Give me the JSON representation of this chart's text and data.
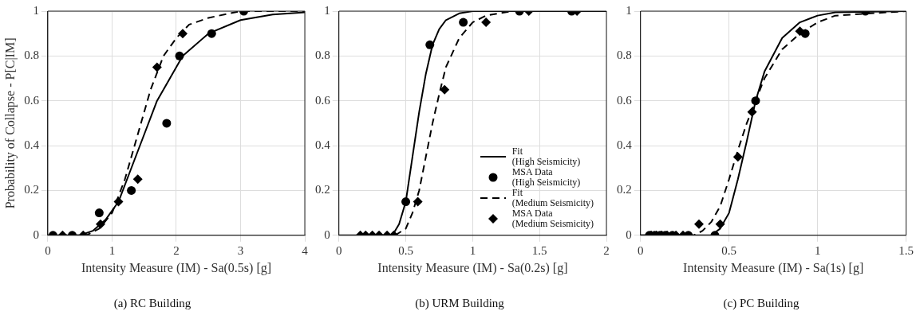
{
  "chart_data": [
    {
      "type": "line",
      "title": "(a) RC Building",
      "xlabel": "Intensity Measure (IM) - Sa(0.5s) [g]",
      "ylabel": "Probability of Collapse - P[C|IM]",
      "xlim": [
        0,
        4
      ],
      "xticks": [
        0,
        1,
        2,
        3,
        4
      ],
      "ylim": [
        0,
        1
      ],
      "yticks": [
        0,
        0.2,
        0.4,
        0.6,
        0.8,
        1
      ],
      "grid": true,
      "series": [
        {
          "type": "line",
          "color": "#000000",
          "line_style": "solid",
          "marker": "none",
          "x": [
            0,
            0.5,
            0.7,
            0.9,
            1.1,
            1.3,
            1.5,
            1.7,
            1.9,
            2.1,
            2.5,
            3,
            3.5,
            4
          ],
          "values": [
            0,
            0,
            0.02,
            0.07,
            0.15,
            0.3,
            0.45,
            0.6,
            0.7,
            0.8,
            0.9,
            0.96,
            0.985,
            0.995
          ]
        },
        {
          "type": "scatter",
          "color": "#000000",
          "marker": "circle",
          "x": [
            0.08,
            0.38,
            0.8,
            1.3,
            1.85,
            2.05,
            2.55,
            3.05
          ],
          "values": [
            0,
            0,
            0.1,
            0.2,
            0.5,
            0.8,
            0.9,
            1
          ]
        },
        {
          "type": "line",
          "color": "#000000",
          "line_style": "dashed",
          "marker": "none",
          "x": [
            0,
            0.6,
            0.8,
            1,
            1.2,
            1.4,
            1.6,
            1.8,
            2,
            2.2,
            2.5,
            3,
            4
          ],
          "values": [
            0,
            0,
            0.03,
            0.1,
            0.25,
            0.45,
            0.65,
            0.8,
            0.88,
            0.94,
            0.97,
            1,
            1
          ]
        },
        {
          "type": "scatter",
          "color": "#000000",
          "marker": "diamond",
          "x": [
            0.23,
            0.55,
            0.82,
            1.1,
            1.4,
            1.7,
            2.1
          ],
          "values": [
            0,
            0,
            0.05,
            0.15,
            0.25,
            0.75,
            0.9
          ]
        }
      ]
    },
    {
      "type": "line",
      "title": "(b) URM Building",
      "xlabel": "Intensity Measure (IM) - Sa(0.2s) [g]",
      "xlim": [
        0,
        2
      ],
      "xticks": [
        0,
        0.5,
        1,
        1.5,
        2
      ],
      "ylim": [
        0,
        1
      ],
      "yticks": [
        0,
        0.2,
        0.4,
        0.6,
        0.8,
        1
      ],
      "grid": true,
      "legend": "right",
      "series": [
        {
          "name": "Fit\n(High Seismicity)",
          "type": "line",
          "color": "#000000",
          "line_style": "solid",
          "marker": "none",
          "x": [
            0,
            0.4,
            0.45,
            0.5,
            0.55,
            0.6,
            0.65,
            0.7,
            0.75,
            0.8,
            0.9,
            1,
            2
          ],
          "values": [
            0,
            0,
            0.05,
            0.15,
            0.35,
            0.55,
            0.72,
            0.85,
            0.92,
            0.96,
            0.99,
            1,
            1
          ]
        },
        {
          "name": "MSA Data\n(High Seismicity)",
          "type": "scatter",
          "color": "#000000",
          "marker": "circle",
          "x": [
            0.5,
            0.68,
            0.93,
            1.35,
            1.74
          ],
          "values": [
            0.15,
            0.85,
            0.95,
            1,
            1
          ]
        },
        {
          "name": "Fit\n(Medium Seismicity)",
          "type": "line",
          "color": "#000000",
          "line_style": "dashed",
          "marker": "none",
          "x": [
            0.42,
            0.5,
            0.55,
            0.6,
            0.65,
            0.7,
            0.75,
            0.8,
            0.9,
            1,
            1.1,
            1.3,
            2
          ],
          "values": [
            0,
            0.03,
            0.1,
            0.2,
            0.35,
            0.5,
            0.63,
            0.75,
            0.88,
            0.95,
            0.98,
            1,
            1
          ]
        },
        {
          "name": "MSA Data\n(Medium Seismicity)",
          "type": "scatter",
          "color": "#000000",
          "marker": "diamond",
          "x": [
            0.16,
            0.2,
            0.25,
            0.3,
            0.36,
            0.41,
            0.59,
            0.79,
            1.1,
            1.42,
            1.78
          ],
          "values": [
            0,
            0,
            0,
            0,
            0,
            0,
            0.15,
            0.65,
            0.95,
            1,
            1
          ]
        }
      ]
    },
    {
      "type": "line",
      "title": "(c) PC Building",
      "xlabel": "Intensity Measure (IM) - Sa(1s) [g]",
      "xlim": [
        0,
        1.5
      ],
      "xticks": [
        0,
        0.5,
        1,
        1.5
      ],
      "ylim": [
        0,
        1
      ],
      "yticks": [
        0,
        0.2,
        0.4,
        0.6,
        0.8,
        1
      ],
      "grid": true,
      "series": [
        {
          "type": "line",
          "color": "#000000",
          "line_style": "solid",
          "marker": "none",
          "x": [
            0,
            0.4,
            0.45,
            0.5,
            0.55,
            0.6,
            0.65,
            0.7,
            0.8,
            0.9,
            1,
            1.1,
            1.5
          ],
          "values": [
            0,
            0,
            0.03,
            0.1,
            0.25,
            0.42,
            0.6,
            0.73,
            0.88,
            0.95,
            0.98,
            0.995,
            1
          ]
        },
        {
          "type": "scatter",
          "color": "#000000",
          "marker": "circle",
          "x": [
            0.05,
            0.08,
            0.11,
            0.14,
            0.18,
            0.27,
            0.42,
            0.65,
            0.93,
            1.27
          ],
          "values": [
            0,
            0,
            0,
            0,
            0,
            0,
            0,
            0.6,
            0.9,
            1
          ]
        },
        {
          "type": "line",
          "color": "#000000",
          "line_style": "dashed",
          "marker": "none",
          "x": [
            0,
            0.3,
            0.35,
            0.4,
            0.45,
            0.5,
            0.55,
            0.6,
            0.65,
            0.7,
            0.8,
            0.9,
            1,
            1.1,
            1.3,
            1.5
          ],
          "values": [
            0,
            0,
            0.02,
            0.06,
            0.13,
            0.25,
            0.38,
            0.5,
            0.6,
            0.7,
            0.83,
            0.9,
            0.95,
            0.98,
            0.99,
            1
          ]
        },
        {
          "type": "scatter",
          "color": "#000000",
          "marker": "diamond",
          "x": [
            0.06,
            0.09,
            0.12,
            0.15,
            0.2,
            0.24,
            0.33,
            0.45,
            0.55,
            0.63,
            0.9
          ],
          "values": [
            0,
            0,
            0,
            0,
            0,
            0,
            0.05,
            0.05,
            0.35,
            0.55,
            0.91
          ]
        }
      ]
    }
  ]
}
